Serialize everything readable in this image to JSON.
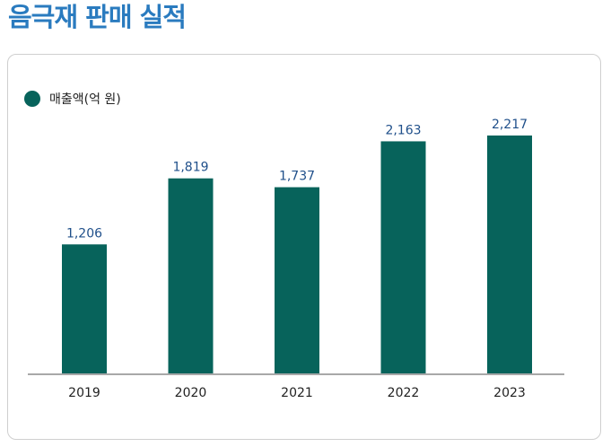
{
  "page": {
    "title": "음극재 판매 실적",
    "title_color": "#2a7bbf"
  },
  "colors": {
    "bar": "#07635b",
    "value_label": "#1f4f8a",
    "axis": "#a8a8a8"
  },
  "chart_data": {
    "type": "bar",
    "title": "",
    "xlabel": "",
    "ylabel": "",
    "categories": [
      "2019",
      "2020",
      "2021",
      "2022",
      "2023"
    ],
    "series": [
      {
        "name": "매출액(억 원)",
        "values": [
          1206,
          1819,
          1737,
          2163,
          2217
        ],
        "value_labels": [
          "1,206",
          "1,819",
          "1,737",
          "2,163",
          "2,217"
        ]
      }
    ],
    "ylim": [
      0,
      2600
    ],
    "grid": false,
    "legend_position": "top-left"
  }
}
